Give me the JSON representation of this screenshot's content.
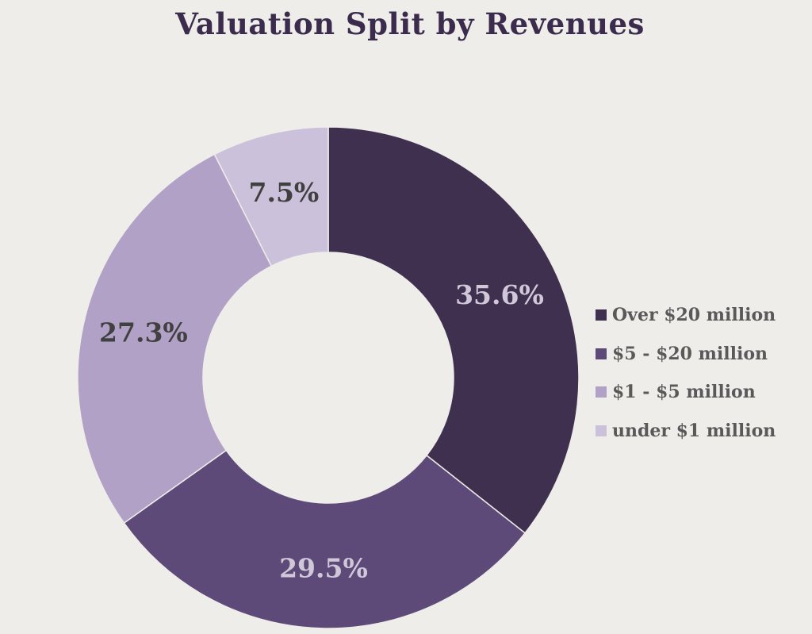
{
  "chart_data": {
    "type": "pie",
    "variant": "donut",
    "title": "Valuation Split by Revenues",
    "categories": [
      "Over $20 million",
      "$5 - $20 million",
      "$1 - $5 million",
      "under $1 million"
    ],
    "values": [
      35.6,
      29.5,
      27.3,
      7.5
    ],
    "data_labels": [
      "35.6%",
      "29.5%",
      "27.3%",
      "7.5%"
    ],
    "colors": [
      "#3f3050",
      "#5d4a78",
      "#b1a1c6",
      "#cbc1da"
    ],
    "label_colors": [
      "#d0c8d8",
      "#d0c8d8",
      "#404040",
      "#404040"
    ],
    "start_angle": "12 o'clock",
    "direction": "clockwise",
    "legend_position": "right"
  }
}
